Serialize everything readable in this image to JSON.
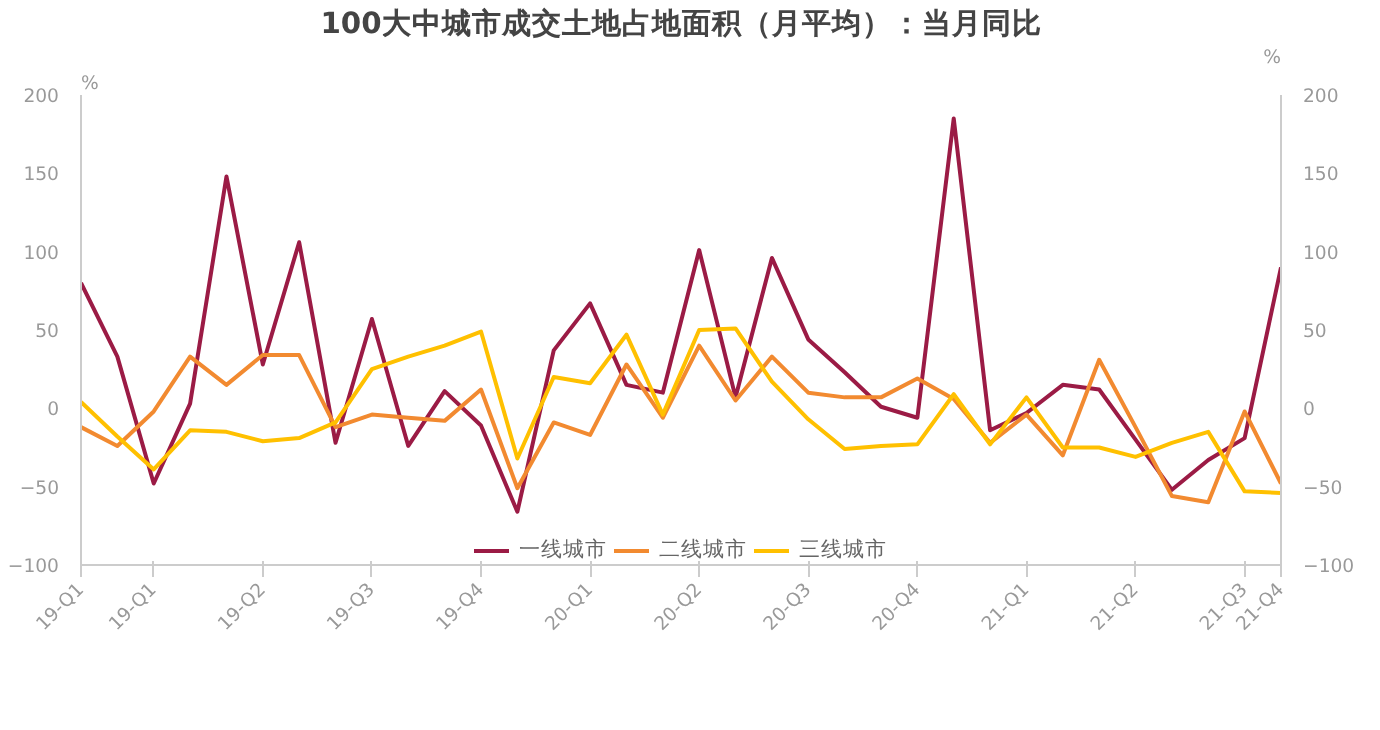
{
  "chart_data": {
    "type": "line",
    "title": "100大中城市成交土地占地面积（月平均）：当月同比",
    "ylabel": "%",
    "y2label": "%",
    "categories": [
      "19-Q1",
      null,
      "19-Q1",
      null,
      null,
      "19-Q2",
      null,
      null,
      "19-Q3",
      null,
      null,
      "19-Q4",
      null,
      null,
      "20-Q1",
      null,
      null,
      "20-Q2",
      null,
      null,
      "20-Q3",
      null,
      null,
      "20-Q4",
      null,
      null,
      "21-Q1",
      null,
      null,
      "21-Q2",
      null,
      null,
      "21-Q3",
      "21-Q4"
    ],
    "series": [
      {
        "name": "一线城市",
        "color": "#9b1b45",
        "values": [
          80,
          33,
          -48,
          3,
          148,
          28,
          106,
          -22,
          57,
          -24,
          11,
          -11,
          -66,
          37,
          67,
          15,
          10,
          101,
          7,
          96,
          44,
          23,
          1,
          -6,
          185,
          -14,
          -3,
          15,
          12,
          -20,
          -52,
          -33,
          -19,
          90
        ]
      },
      {
        "name": "二线城市",
        "color": "#f28a30",
        "values": [
          -12,
          -24,
          -2,
          33,
          15,
          34,
          34,
          -12,
          -4,
          -6,
          -8,
          12,
          -51,
          -9,
          -17,
          28,
          -6,
          40,
          5,
          33,
          10,
          7,
          7,
          19,
          6,
          -22,
          -4,
          -30,
          31,
          -12,
          -56,
          -60,
          -2,
          -48
        ]
      },
      {
        "name": "三线城市",
        "color": "#ffc000",
        "values": [
          4,
          -18,
          -39,
          -14,
          -15,
          -21,
          -19,
          -9,
          25,
          33,
          40,
          49,
          -32,
          20,
          16,
          47,
          -4,
          50,
          51,
          17,
          -7,
          -26,
          -24,
          -23,
          9,
          -23,
          7,
          -25,
          -25,
          -31,
          -22,
          -15,
          -53,
          -54
        ]
      }
    ],
    "ylim": [
      -100,
      200
    ],
    "yticks": [
      -100,
      -50,
      0,
      50,
      100,
      150,
      200
    ],
    "y2lim": [
      -100,
      200
    ],
    "y2ticks": [
      -100,
      -50,
      0,
      50,
      100,
      150,
      200
    ],
    "grid": false,
    "legend": "bottom",
    "marker": "none",
    "line_style": "solid"
  }
}
